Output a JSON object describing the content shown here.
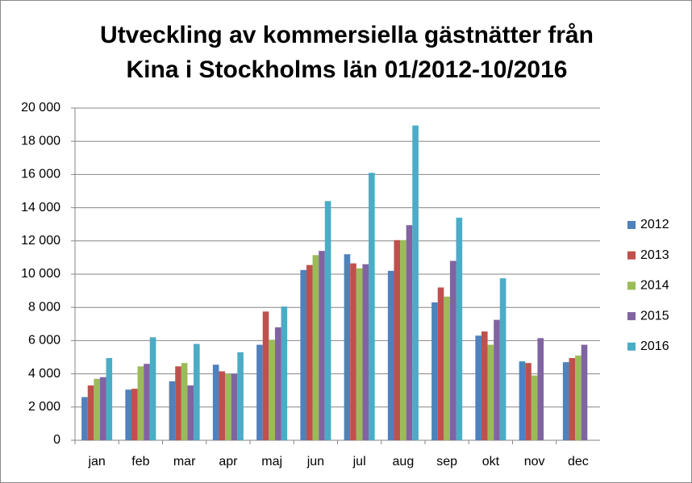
{
  "chart_data": {
    "type": "bar",
    "title": [
      "Utveckling av kommersiella gästnätter från",
      "Kina i Stockholms län 01/2012-10/2016"
    ],
    "categories": [
      "jan",
      "feb",
      "mar",
      "apr",
      "maj",
      "jun",
      "jul",
      "aug",
      "sep",
      "okt",
      "nov",
      "dec"
    ],
    "series": [
      {
        "name": "2012",
        "color": "#4f81bd",
        "values": [
          2600,
          3050,
          3550,
          4550,
          5750,
          10250,
          11200,
          10200,
          8300,
          6300,
          4750,
          4700
        ]
      },
      {
        "name": "2013",
        "color": "#c0504d",
        "values": [
          3300,
          3100,
          4450,
          4150,
          7750,
          10550,
          10650,
          12050,
          9200,
          6550,
          4650,
          4950
        ]
      },
      {
        "name": "2014",
        "color": "#9bbb59",
        "values": [
          3700,
          4450,
          4650,
          4000,
          6050,
          11150,
          10350,
          12050,
          8650,
          5750,
          3900,
          5100
        ]
      },
      {
        "name": "2015",
        "color": "#8064a2",
        "values": [
          3800,
          4600,
          3300,
          4000,
          6800,
          11400,
          10600,
          12950,
          10800,
          7250,
          6150,
          5750
        ]
      },
      {
        "name": "2016",
        "color": "#4bacc6",
        "values": [
          4950,
          6200,
          5800,
          5300,
          8050,
          14400,
          16100,
          18950,
          13400,
          9750,
          null,
          null
        ]
      }
    ],
    "ylim": [
      0,
      20000
    ],
    "yticks": [
      0,
      {
        "value": 2000,
        "label": "2 000"
      },
      {
        "value": 4000,
        "label": "4 000"
      },
      {
        "value": 6000,
        "label": "6 000"
      },
      {
        "value": 8000,
        "label": "8 000"
      },
      {
        "value": 10000,
        "label": "10 000"
      },
      {
        "value": 12000,
        "label": "12 000"
      },
      {
        "value": 14000,
        "label": "14 000"
      },
      {
        "value": 16000,
        "label": "16 000"
      },
      {
        "value": 18000,
        "label": "18 000"
      },
      {
        "value": 20000,
        "label": "20 000"
      }
    ],
    "grid": true,
    "legend": "right"
  }
}
